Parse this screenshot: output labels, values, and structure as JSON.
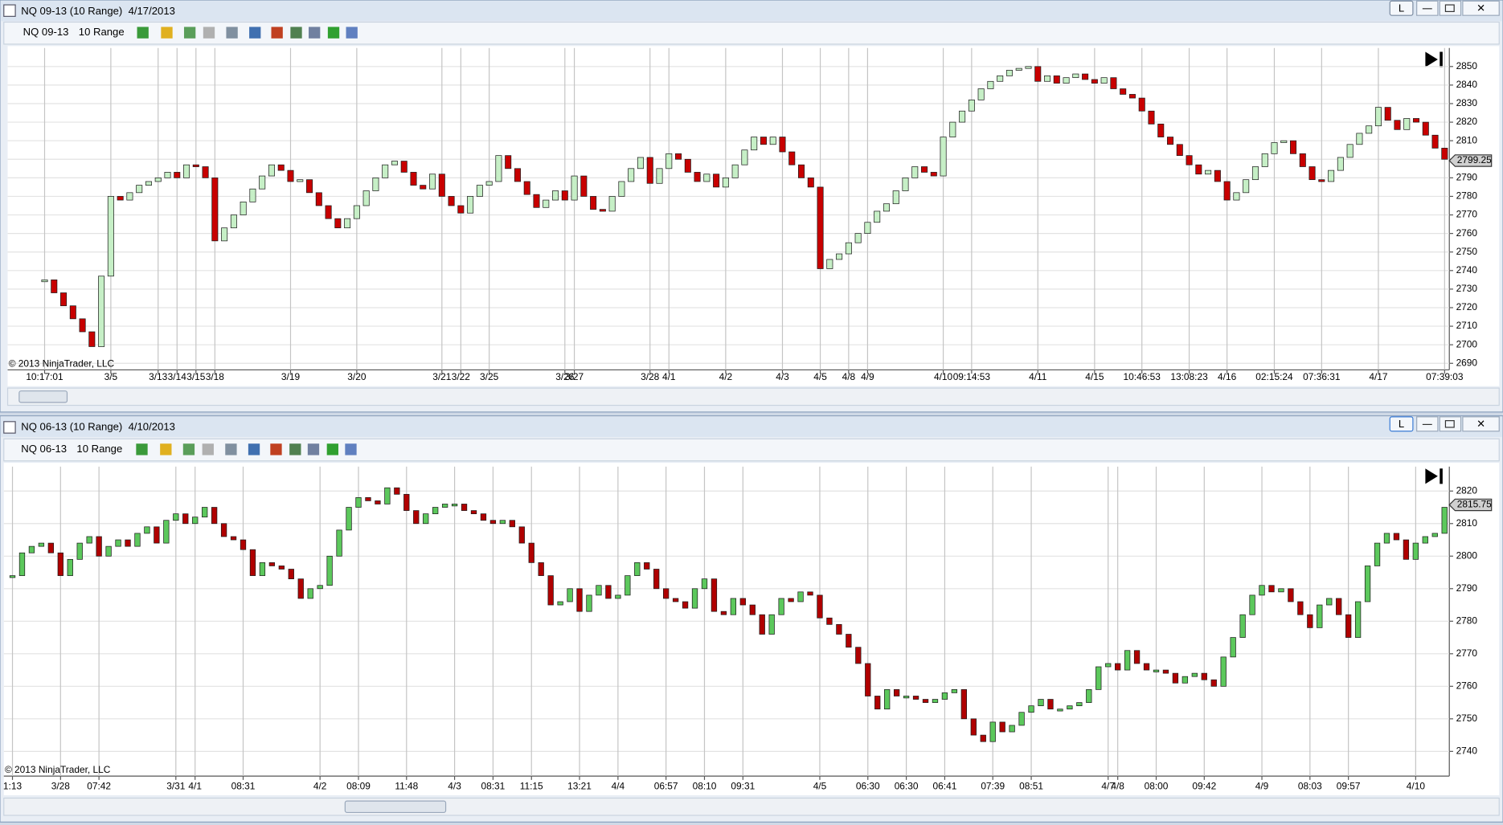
{
  "windows": [
    {
      "title": "NQ 09-13 (10 Range)  4/17/2013",
      "instrument": "NQ 09-13",
      "period": "10 Range",
      "link_button": "L"
    },
    {
      "title": "NQ 06-13 (10 Range)  4/10/2013",
      "instrument": "NQ 06-13",
      "period": "10 Range",
      "link_button": "L"
    }
  ],
  "chart_data": [
    {
      "type": "range-bar",
      "copyright": "© 2013 NinjaTrader, LLC",
      "last_price": 2799.25,
      "up_color": "#c6efc6",
      "down_color": "#c80000",
      "grid": true,
      "ylim": [
        2687.5,
        2860
      ],
      "yticks": [
        2690,
        2700,
        2710,
        2720,
        2730,
        2740,
        2750,
        2760,
        2770,
        2780,
        2790,
        2800,
        2810,
        2820,
        2830,
        2840,
        2850
      ],
      "categories": [
        null,
        null,
        null,
        "10:17:01",
        null,
        null,
        null,
        null,
        null,
        null,
        "3/5",
        null,
        null,
        null,
        null,
        "3/13",
        null,
        "3/14",
        null,
        "3/15",
        null,
        "3/18",
        null,
        null,
        null,
        null,
        null,
        null,
        null,
        "3/19",
        null,
        null,
        null,
        null,
        null,
        null,
        "3/20",
        null,
        null,
        null,
        null,
        null,
        null,
        null,
        null,
        "3/21",
        null,
        "3/22",
        null,
        null,
        "3/25",
        null,
        null,
        null,
        null,
        null,
        null,
        null,
        "3/26",
        "3/27",
        null,
        null,
        null,
        null,
        null,
        null,
        null,
        "3/28",
        null,
        "4/1",
        null,
        null,
        null,
        null,
        null,
        "4/2",
        null,
        null,
        null,
        null,
        null,
        "4/3",
        null,
        null,
        null,
        "4/5",
        null,
        null,
        "4/8",
        null,
        "4/9",
        null,
        null,
        null,
        null,
        null,
        null,
        null,
        "4/10",
        null,
        null,
        "09:14:53",
        null,
        null,
        null,
        null,
        null,
        null,
        "4/11",
        null,
        null,
        null,
        null,
        null,
        "4/15",
        null,
        null,
        null,
        null,
        "10:46:53",
        null,
        null,
        null,
        null,
        "13:08:23",
        null,
        null,
        null,
        "4/16",
        null,
        null,
        null,
        null,
        "02:15:24",
        null,
        null,
        null,
        null,
        "07:36:31",
        null,
        null,
        null,
        null,
        null,
        "4/17",
        null,
        null,
        null,
        null,
        null,
        null,
        "07:39:03"
      ],
      "values": [
        null,
        null,
        null,
        2735,
        2728,
        2721,
        2714,
        2707,
        2699,
        2737,
        2780,
        2778,
        2782,
        2786,
        2788,
        2790,
        2793,
        2790,
        2797,
        2796,
        2790,
        2756,
        2763,
        2770,
        2777,
        2784,
        2791,
        2797,
        2794,
        2788,
        2789,
        2782,
        2775,
        2768,
        2763,
        2768,
        2775,
        2783,
        2790,
        2797,
        2799,
        2793,
        2786,
        2784,
        2792,
        2780,
        2775,
        2771,
        2780,
        2786,
        2788,
        2802,
        2795,
        2788,
        2781,
        2774,
        2778,
        2783,
        2778,
        2791,
        2780,
        2773,
        2772,
        2780,
        2788,
        2795,
        2801,
        2787,
        2795,
        2803,
        2800,
        2793,
        2788,
        2792,
        2785,
        2790,
        2797,
        2805,
        2812,
        2808,
        2812,
        2804,
        2797,
        2790,
        2785,
        2741,
        2746,
        2749,
        2755,
        2760,
        2766,
        2772,
        2776,
        2783,
        2790,
        2796,
        2793,
        2791,
        2812,
        2820,
        2826,
        2832,
        2838,
        2842,
        2845,
        2848,
        2849,
        2850,
        2842,
        2845,
        2841,
        2844,
        2846,
        2843,
        2841,
        2844,
        2838,
        2835,
        2833,
        2826,
        2819,
        2812,
        2808,
        2802,
        2797,
        2792,
        2794,
        2788,
        2778,
        2782,
        2789,
        2796,
        2803,
        2809,
        2810,
        2803,
        2796,
        2789,
        2788,
        2794,
        2801,
        2808,
        2814,
        2818,
        2828,
        2821,
        2816,
        2822,
        2820,
        2813,
        2806,
        2800
      ]
    },
    {
      "type": "candlestick",
      "copyright": "© 2013 NinjaTrader, LLC",
      "last_price": 2815.75,
      "up_color": "#5cc85c",
      "down_color": "#b00000",
      "grid": true,
      "ylim": [
        2733,
        2827.5
      ],
      "yticks": [
        2740,
        2750,
        2760,
        2770,
        2780,
        2790,
        2800,
        2810,
        2820
      ],
      "categories": [
        "1:13",
        null,
        null,
        null,
        null,
        "3/28",
        null,
        null,
        null,
        "07:42",
        null,
        null,
        null,
        null,
        null,
        null,
        null,
        "3/31",
        null,
        "4/1",
        null,
        null,
        null,
        null,
        "08:31",
        null,
        null,
        null,
        null,
        null,
        null,
        null,
        "4/2",
        null,
        null,
        null,
        "08:09",
        null,
        null,
        null,
        null,
        "11:48",
        null,
        null,
        null,
        null,
        "4/3",
        null,
        null,
        null,
        "08:31",
        null,
        null,
        null,
        "11:15",
        null,
        null,
        null,
        null,
        "13:21",
        null,
        null,
        null,
        "4/4",
        null,
        null,
        null,
        null,
        "06:57",
        null,
        null,
        null,
        "08:10",
        null,
        null,
        null,
        "09:31",
        null,
        null,
        null,
        null,
        null,
        null,
        null,
        "4/5",
        null,
        null,
        null,
        null,
        "06:30",
        null,
        null,
        null,
        "06:30",
        null,
        null,
        null,
        "06:41",
        null,
        null,
        null,
        null,
        "07:39",
        null,
        null,
        null,
        "08:51",
        null,
        null,
        null,
        null,
        null,
        null,
        null,
        "4/7",
        "4/8",
        null,
        null,
        null,
        "08:00",
        null,
        null,
        null,
        null,
        "09:42",
        null,
        null,
        null,
        null,
        null,
        "4/9",
        null,
        null,
        null,
        null,
        "08:03",
        null,
        null,
        null,
        "09:57",
        null,
        null,
        null,
        null,
        null,
        null,
        "4/10",
        null,
        null,
        null
      ],
      "values": [
        2794,
        2801,
        2803,
        2804,
        2801,
        2794,
        2799,
        2804,
        2806,
        2800,
        2803,
        2805,
        2803,
        2807,
        2809,
        2804,
        2811,
        2813,
        2810,
        2812,
        2815,
        2810,
        2806,
        2805,
        2802,
        2794,
        2798,
        2797,
        2796,
        2793,
        2787,
        2790,
        2791,
        2800,
        2808,
        2815,
        2818,
        2817,
        2816,
        2821,
        2819,
        2814,
        2810,
        2813,
        2815,
        2816,
        2816,
        2814,
        2813,
        2811,
        2810,
        2811,
        2809,
        2804,
        2798,
        2794,
        2785,
        2786,
        2790,
        2783,
        2788,
        2791,
        2787,
        2788,
        2794,
        2798,
        2796,
        2790,
        2787,
        2786,
        2784,
        2790,
        2793,
        2783,
        2782,
        2787,
        2785,
        2782,
        2776,
        2782,
        2787,
        2786,
        2789,
        2788,
        2781,
        2779,
        2776,
        2772,
        2767,
        2757,
        2753,
        2759,
        2757,
        2757,
        2756,
        2755,
        2756,
        2758,
        2759,
        2750,
        2745,
        2743,
        2749,
        2746,
        2748,
        2752,
        2754,
        2756,
        2753,
        2753,
        2754,
        2755,
        2759,
        2766,
        2767,
        2765,
        2771,
        2767,
        2765,
        2765,
        2764,
        2761,
        2763,
        2764,
        2762,
        2760,
        2769,
        2775,
        2782,
        2788,
        2791,
        2789,
        2790,
        2786,
        2782,
        2778,
        2785,
        2787,
        2782,
        2775,
        2786,
        2797,
        2804,
        2807,
        2805,
        2799,
        2804,
        2806,
        2807,
        2815
      ]
    }
  ]
}
